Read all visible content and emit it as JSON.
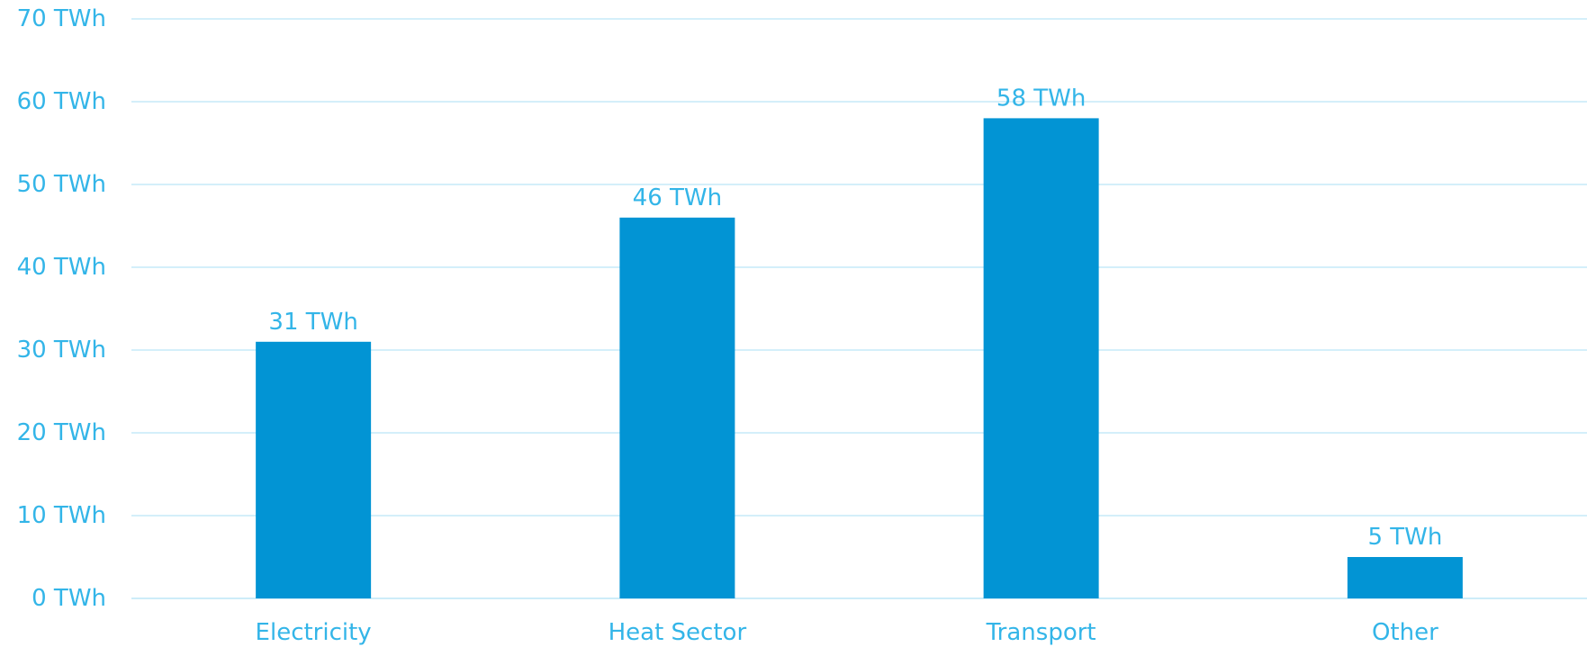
{
  "chart_data": {
    "type": "bar",
    "categories": [
      "Electricity",
      "Heat Sector",
      "Transport",
      "Other"
    ],
    "values": [
      31,
      46,
      58,
      5
    ],
    "data_labels": [
      "31 TWh",
      "46 TWh",
      "58 TWh",
      "5 TWh"
    ],
    "y_ticks": [
      0,
      10,
      20,
      30,
      40,
      50,
      60,
      70
    ],
    "y_tick_labels": [
      "0 TWh",
      "10 TWh",
      "20 TWh",
      "30 TWh",
      "40 TWh",
      "50 TWh",
      "60 TWh",
      "70 TWh"
    ],
    "ylim": [
      0,
      70
    ],
    "unit": "TWh",
    "title": "",
    "xlabel": "",
    "ylabel": "",
    "grid": true,
    "legend": "none",
    "colors": {
      "bar": "#0294d4",
      "text": "#33b5e8",
      "grid": "#d4effa"
    }
  }
}
